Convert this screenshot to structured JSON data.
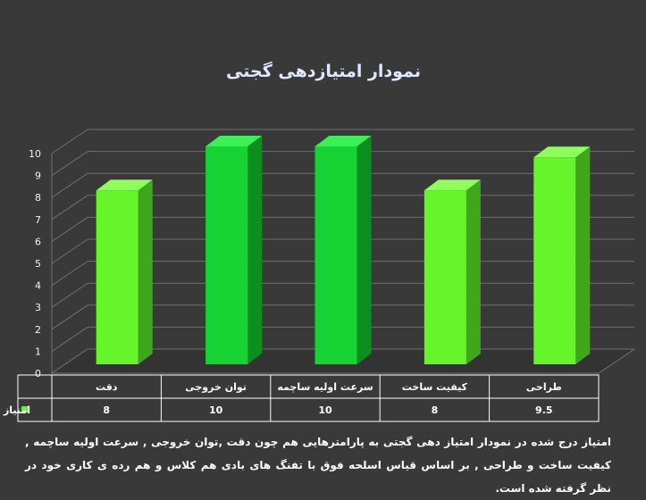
{
  "colors": {
    "background": "#3a3939",
    "bar_light_front": "#66f52a",
    "bar_light_side": "#3fa81a",
    "bar_light_top": "#8cff5a",
    "bar_dark_front": "#16d232",
    "bar_dark_side": "#0b8f1f",
    "bar_dark_top": "#3cf058",
    "grid": "#6f6f6f",
    "title": "#dfe8ff"
  },
  "chart_data": {
    "type": "bar",
    "title": "نمودار امتیازدهی گجتی",
    "categories": [
      "دقت",
      "توان خروجی",
      "سرعت اولیه ساچمه",
      "کیفیت ساخت",
      "طراحی"
    ],
    "series": [
      {
        "name": "امتیاز",
        "values": [
          8,
          10,
          10,
          8,
          9.5
        ]
      }
    ],
    "value_labels": [
      "8",
      "10",
      "10",
      "8",
      "9.5"
    ],
    "bar_style": [
      "light",
      "dark",
      "dark",
      "light",
      "light"
    ],
    "ylim": [
      0,
      10
    ],
    "yticks": [
      "0",
      "1",
      "2",
      "3",
      "4",
      "5",
      "6",
      "7",
      "8",
      "9",
      "10"
    ],
    "grid": true,
    "legend": "data-table-left"
  },
  "caption": "امتیاز درج شده در نمودار امتیاز دهی گجتی  به پارامترهایی هم چون دقت ,توان خروجی , سرعت اولیه ساچمه , کیفیت ساخت و طراحی , بر اساس قیاس اسلحه فوق با تفنگ های بادی هم کلاس و هم رده ی کاری خود در نظر گرفته شده است."
}
